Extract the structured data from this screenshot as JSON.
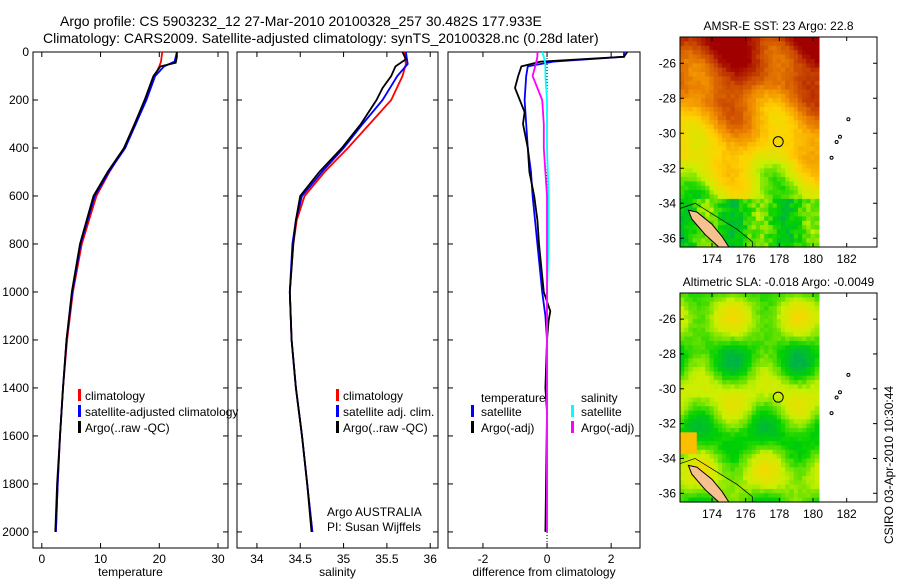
{
  "title_line1": "Argo profile: CS 5903232_12 27-Mar-2010 20100328_257 30.482S 177.933E",
  "title_line2": "Climatology: CARS2009. Satellite-adjusted climatology: synTS_20100328.nc (0.28d later)",
  "side_stamp": "CSIRO 03-Apr-2010 10:30:44",
  "colors": {
    "climatology": "#ff0000",
    "satellite": "#0000ff",
    "argo": "#000000",
    "sal_sat": "#00ffff",
    "sal_argo": "#ff00ff",
    "land": "#f7c08f"
  },
  "chart_data": [
    {
      "type": "line",
      "id": "temperature",
      "xlabel": "temperature",
      "xlim": [
        -1.5,
        31.7
      ],
      "ylim": [
        2067,
        0
      ],
      "xticks": [
        "0",
        "10",
        "20",
        "30"
      ],
      "xtick_values": [
        0,
        10,
        20,
        30
      ],
      "yticks": [
        "0",
        "200",
        "400",
        "600",
        "800",
        "1000",
        "1200",
        "1400",
        "1600",
        "1800",
        "2000"
      ],
      "ytick_values": [
        0,
        200,
        400,
        600,
        800,
        1000,
        1200,
        1400,
        1600,
        1800,
        2000
      ],
      "legend": [
        "climatology",
        "satellite-adjusted climatology",
        "Argo(..raw -QC)"
      ],
      "series": [
        {
          "name": "climatology",
          "color": "#ff0000",
          "depth": [
            0,
            40,
            60,
            100,
            200,
            300,
            400,
            500,
            600,
            800,
            1000,
            1200,
            1400,
            1600,
            1800,
            2000
          ],
          "values": [
            20.5,
            20.3,
            20,
            19.2,
            17.6,
            15.8,
            14,
            11.5,
            9.3,
            6.8,
            5.3,
            4.3,
            3.6,
            3.1,
            2.7,
            2.4
          ]
        },
        {
          "name": "satellite-adjusted climatology",
          "color": "#0000ff",
          "depth": [
            0,
            40,
            60,
            100,
            200,
            300,
            400,
            500,
            600,
            800,
            1000,
            1200,
            1400,
            1600,
            1800,
            2000
          ],
          "values": [
            23,
            22.6,
            20.8,
            19.3,
            17.8,
            16,
            14.2,
            11.4,
            9,
            6.6,
            5.2,
            4.2,
            3.6,
            3.1,
            2.7,
            2.4
          ]
        },
        {
          "name": "Argo(..raw -QC)",
          "color": "#000000",
          "depth": [
            0,
            20,
            45,
            60,
            100,
            200,
            300,
            400,
            500,
            600,
            800,
            1000,
            1200,
            1400,
            1600,
            1800,
            2000
          ],
          "values": [
            23,
            23,
            22.8,
            20.2,
            19,
            17.5,
            15.8,
            14,
            11.2,
            8.8,
            6.5,
            5.1,
            4.2,
            3.6,
            3.1,
            2.6,
            2.3
          ]
        }
      ]
    },
    {
      "type": "line",
      "id": "salinity",
      "xlabel": "salinity",
      "xlim": [
        33.77,
        36.09
      ],
      "ylim": [
        2067,
        0
      ],
      "xticks": [
        "34",
        "34.5",
        "35",
        "35.5",
        "36"
      ],
      "xtick_values": [
        34,
        34.5,
        35,
        35.5,
        36
      ],
      "legend": [
        "climatology",
        "satellite adj. clim.",
        "Argo(..raw -QC)"
      ],
      "annotation": [
        "Argo AUSTRALIA",
        "PI: Susan Wijffels"
      ],
      "series": [
        {
          "name": "climatology",
          "color": "#ff0000",
          "depth": [
            0,
            50,
            100,
            200,
            300,
            400,
            500,
            600,
            700,
            800,
            1000,
            1200,
            1400,
            1600,
            1800,
            2000
          ],
          "values": [
            35.7,
            35.72,
            35.68,
            35.55,
            35.3,
            35.05,
            34.78,
            34.55,
            34.46,
            34.42,
            34.38,
            34.4,
            34.45,
            34.52,
            34.58,
            34.64
          ]
        },
        {
          "name": "satellite adj. clim.",
          "color": "#0000ff",
          "depth": [
            0,
            50,
            100,
            200,
            300,
            400,
            500,
            600,
            700,
            800,
            1000,
            1200,
            1400,
            1600,
            1800,
            2000
          ],
          "values": [
            35.72,
            35.74,
            35.62,
            35.45,
            35.22,
            35.0,
            34.75,
            34.52,
            34.45,
            34.41,
            34.38,
            34.4,
            34.45,
            34.52,
            34.58,
            34.64
          ]
        },
        {
          "name": "Argo(..raw -QC)",
          "color": "#000000",
          "depth": [
            0,
            30,
            60,
            100,
            150,
            200,
            300,
            400,
            500,
            600,
            700,
            800,
            1000,
            1200,
            1400,
            1600,
            1800,
            2000
          ],
          "values": [
            35.68,
            35.72,
            35.6,
            35.55,
            35.45,
            35.38,
            35.2,
            34.98,
            34.72,
            34.5,
            34.45,
            34.42,
            34.38,
            34.4,
            34.45,
            34.52,
            34.58,
            34.63
          ]
        }
      ]
    },
    {
      "type": "line",
      "id": "difference",
      "xlabel": "difference from climatology",
      "xlim": [
        -3.09,
        2.9
      ],
      "ylim": [
        2067,
        0
      ],
      "xticks": [
        "-2",
        "0",
        "2"
      ],
      "xtick_values": [
        -2,
        0,
        2
      ],
      "legend_temperature": {
        "title": "temperature",
        "items": [
          "satellite",
          "Argo(-adj)"
        ]
      },
      "legend_salinity": {
        "title": "salinity",
        "items": [
          "satellite",
          "Argo(-adj)"
        ]
      },
      "series": [
        {
          "name": "temperature satellite",
          "color": "#0000ff",
          "depth": [
            0,
            20,
            40,
            60,
            100,
            200,
            300,
            400,
            500,
            600,
            800,
            1000,
            1100,
            1200,
            1400,
            2000
          ],
          "values": [
            2.4,
            2.4,
            0.2,
            -0.6,
            -0.65,
            -0.7,
            -0.65,
            -0.6,
            -0.5,
            -0.45,
            -0.3,
            -0.15,
            -0.05,
            0,
            0,
            0
          ]
        },
        {
          "name": "temperature Argo(-adj)",
          "color": "#000000",
          "depth": [
            0,
            20,
            40,
            60,
            100,
            150,
            200,
            250,
            300,
            400,
            500,
            600,
            700,
            800,
            1000,
            1080,
            1120,
            1200,
            1400,
            1500,
            2000
          ],
          "values": [
            2.5,
            2.4,
            -0.2,
            -0.8,
            -0.9,
            -1.0,
            -0.85,
            -0.7,
            -0.75,
            -0.6,
            -0.55,
            -0.4,
            -0.3,
            -0.25,
            -0.1,
            0.1,
            0.05,
            0,
            -0.05,
            0,
            -0.05
          ]
        },
        {
          "name": "salinity satellite",
          "color": "#00ffff",
          "depth": [
            0,
            20,
            50,
            100,
            200,
            400,
            600,
            800,
            1000,
            1400,
            2000
          ],
          "values": [
            -0.15,
            -0.1,
            -0.05,
            -0.05,
            0,
            0,
            0.05,
            0.05,
            0,
            0,
            0
          ]
        },
        {
          "name": "salinity Argo(-adj)",
          "color": "#ff00ff",
          "depth": [
            0,
            20,
            50,
            100,
            150,
            200,
            300,
            400,
            500,
            600,
            800,
            1000,
            1400,
            2000
          ],
          "values": [
            -0.3,
            -0.3,
            -0.35,
            -0.45,
            -0.3,
            -0.15,
            -0.1,
            -0.1,
            -0.05,
            0,
            0,
            0,
            0,
            0
          ]
        }
      ]
    },
    {
      "type": "heatmap",
      "id": "sst_map",
      "title": "AMSR-E SST: 23 Argo: 22.8",
      "xlim": [
        172.1,
        183.8
      ],
      "ylim": [
        -36.5,
        -24.5
      ],
      "xticks": [
        "174",
        "176",
        "178",
        "180",
        "182"
      ],
      "xtick_values": [
        174,
        176,
        178,
        180,
        182
      ],
      "yticks": [
        "-26",
        "-28",
        "-30",
        "-32",
        "-34",
        "-36"
      ],
      "ytick_values": [
        -26,
        -28,
        -30,
        -32,
        -34,
        -36
      ],
      "float_position": [
        177.933,
        -30.482
      ]
    },
    {
      "type": "heatmap",
      "id": "sla_map",
      "title": "Altimetric SLA: -0.018 Argo: -0.0049",
      "xlim": [
        172.1,
        183.8
      ],
      "ylim": [
        -36.5,
        -24.5
      ],
      "xticks": [
        "174",
        "176",
        "178",
        "180",
        "182"
      ],
      "xtick_values": [
        174,
        176,
        178,
        180,
        182
      ],
      "yticks": [
        "-26",
        "-28",
        "-30",
        "-32",
        "-34",
        "-36"
      ],
      "ytick_values": [
        -26,
        -28,
        -30,
        -32,
        -34,
        -36
      ],
      "float_position": [
        177.933,
        -30.482
      ]
    }
  ]
}
